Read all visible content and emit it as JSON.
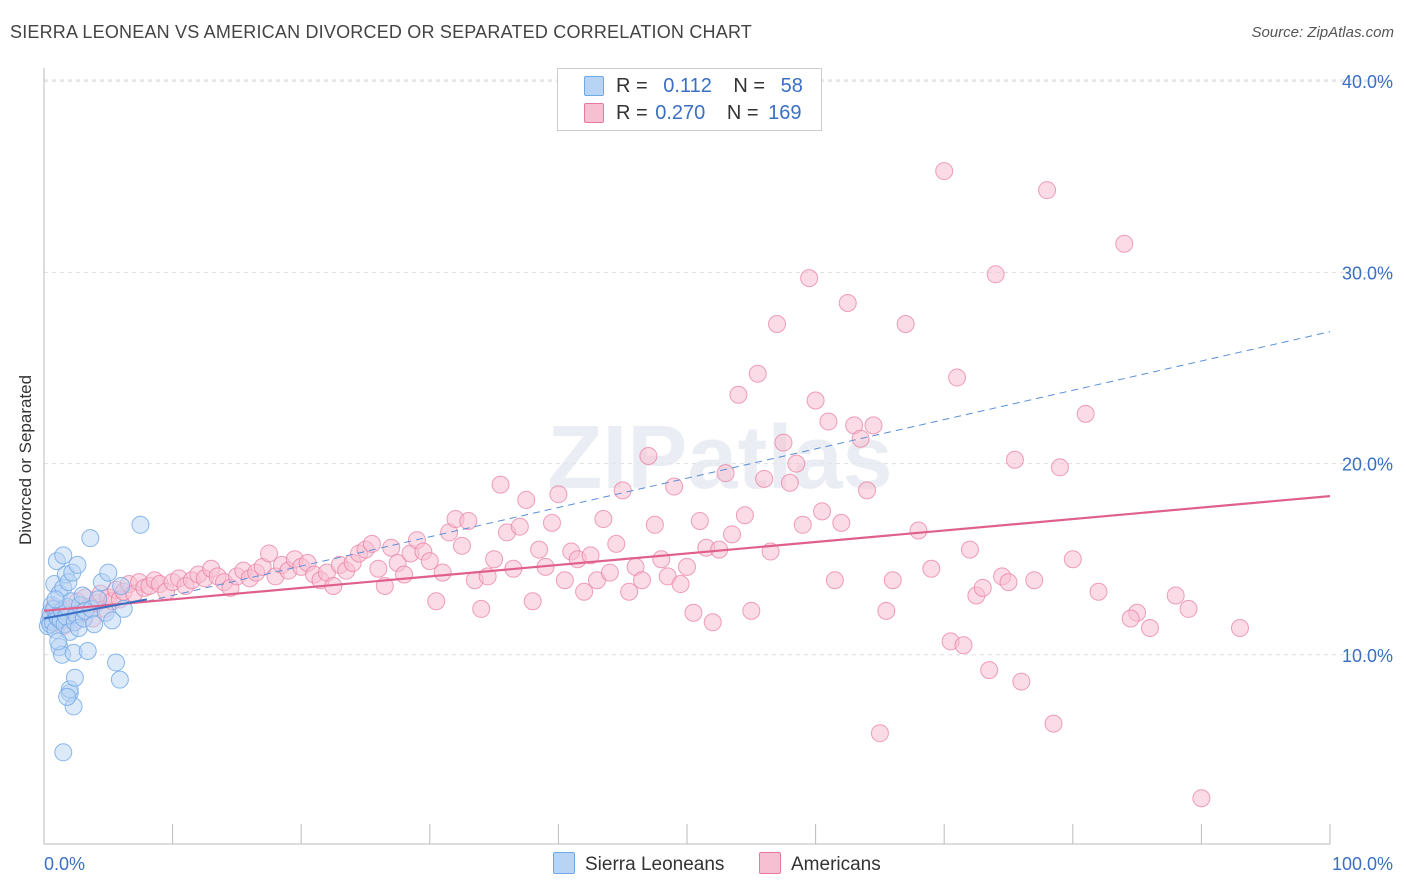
{
  "title": "SIERRA LEONEAN VS AMERICAN DIVORCED OR SEPARATED CORRELATION CHART",
  "source": "Source: ZipAtlas.com",
  "watermark": "ZIPatlas",
  "legend": {
    "row1": {
      "r_label": "R =",
      "r_value": "0.112",
      "n_label": "N =",
      "n_value": "58"
    },
    "row2": {
      "r_label": "R =",
      "r_value": "0.270",
      "n_label": "N =",
      "n_value": "169"
    }
  },
  "bottom_legend": {
    "series1": "Sierra Leoneans",
    "series2": "Americans"
  },
  "colors": {
    "blue": "#6fa8e8",
    "blue_fill": "#b8d4f4",
    "pink": "#e8799c",
    "pink_fill": "#f7c0d2",
    "axis_text": "#3a6fc4",
    "grid": "#dddddd"
  },
  "chart_data": {
    "type": "scatter",
    "title": "SIERRA LEONEAN VS AMERICAN DIVORCED OR SEPARATED CORRELATION CHART",
    "xlabel": "",
    "ylabel": "Divorced or Separated",
    "xlim": [
      0,
      100
    ],
    "ylim": [
      0,
      42
    ],
    "x_tick_labels": [
      "0.0%",
      "100.0%"
    ],
    "y_ticks": [
      10,
      20,
      30,
      40
    ],
    "y_tick_labels": [
      "10.0%",
      "20.0%",
      "30.0%",
      "40.0%"
    ],
    "grid": true,
    "legend_position": "top-center",
    "series": [
      {
        "name": "Sierra Leoneans",
        "R": 0.112,
        "N": 58,
        "trend": {
          "x": [
            0,
            8
          ],
          "y": [
            11.9,
            12.9
          ]
        },
        "points": [
          [
            0.3,
            11.5
          ],
          [
            0.4,
            11.8
          ],
          [
            0.5,
            12.2
          ],
          [
            0.5,
            11.6
          ],
          [
            0.6,
            12.6
          ],
          [
            0.7,
            11.7
          ],
          [
            0.8,
            12.4
          ],
          [
            0.8,
            13.7
          ],
          [
            0.9,
            11.3
          ],
          [
            1.0,
            12.0
          ],
          [
            1.0,
            14.9
          ],
          [
            1.1,
            11.9
          ],
          [
            1.2,
            13.2
          ],
          [
            1.2,
            10.4
          ],
          [
            1.3,
            11.8
          ],
          [
            1.4,
            12.3
          ],
          [
            1.4,
            10.0
          ],
          [
            1.5,
            13.5
          ],
          [
            1.5,
            15.2
          ],
          [
            1.6,
            11.6
          ],
          [
            1.7,
            14.2
          ],
          [
            1.7,
            12.0
          ],
          [
            1.8,
            12.5
          ],
          [
            1.9,
            13.8
          ],
          [
            2.0,
            11.2
          ],
          [
            2.0,
            8.0
          ],
          [
            2.1,
            12.8
          ],
          [
            2.2,
            14.3
          ],
          [
            2.3,
            10.1
          ],
          [
            2.3,
            7.3
          ],
          [
            2.4,
            11.7
          ],
          [
            2.5,
            12.1
          ],
          [
            2.6,
            14.7
          ],
          [
            2.7,
            11.4
          ],
          [
            2.8,
            12.6
          ],
          [
            3.0,
            13.1
          ],
          [
            3.1,
            11.9
          ],
          [
            3.2,
            12.3
          ],
          [
            3.4,
            10.2
          ],
          [
            3.6,
            16.1
          ],
          [
            3.7,
            12.4
          ],
          [
            3.9,
            11.6
          ],
          [
            4.2,
            12.9
          ],
          [
            4.5,
            13.8
          ],
          [
            4.8,
            12.2
          ],
          [
            5.0,
            14.3
          ],
          [
            5.3,
            11.8
          ],
          [
            6.0,
            13.6
          ],
          [
            6.2,
            12.4
          ],
          [
            0.9,
            12.9
          ],
          [
            1.1,
            10.7
          ],
          [
            2.0,
            8.2
          ],
          [
            2.4,
            8.8
          ],
          [
            1.5,
            4.9
          ],
          [
            5.6,
            9.6
          ],
          [
            5.9,
            8.7
          ],
          [
            7.5,
            16.8
          ],
          [
            1.8,
            7.8
          ]
        ]
      },
      {
        "name": "Americans",
        "R": 0.27,
        "N": 169,
        "trend": {
          "x": [
            0,
            100
          ],
          "y": [
            12.3,
            18.3
          ]
        },
        "dashed_extension": {
          "x": [
            8,
            100
          ],
          "y": [
            12.8,
            26.9
          ]
        },
        "points": [
          [
            0.5,
            12.0
          ],
          [
            0.8,
            12.5
          ],
          [
            1.0,
            11.8
          ],
          [
            1.2,
            12.3
          ],
          [
            1.5,
            11.5
          ],
          [
            1.8,
            12.1
          ],
          [
            2.0,
            12.4
          ],
          [
            2.3,
            11.7
          ],
          [
            2.6,
            12.8
          ],
          [
            2.9,
            12.2
          ],
          [
            3.2,
            13.0
          ],
          [
            3.5,
            12.5
          ],
          [
            3.8,
            11.9
          ],
          [
            4.1,
            12.7
          ],
          [
            4.4,
            13.2
          ],
          [
            4.7,
            12.4
          ],
          [
            5.0,
            13.0
          ],
          [
            5.3,
            12.8
          ],
          [
            5.6,
            13.4
          ],
          [
            5.9,
            12.9
          ],
          [
            6.2,
            13.3
          ],
          [
            6.6,
            13.7
          ],
          [
            7.0,
            13.2
          ],
          [
            7.4,
            13.8
          ],
          [
            7.8,
            13.5
          ],
          [
            8.2,
            13.6
          ],
          [
            8.6,
            13.9
          ],
          [
            9.0,
            13.7
          ],
          [
            9.5,
            13.3
          ],
          [
            10.0,
            13.8
          ],
          [
            10.5,
            14.0
          ],
          [
            11.0,
            13.6
          ],
          [
            11.5,
            13.9
          ],
          [
            12.0,
            14.2
          ],
          [
            12.5,
            14.0
          ],
          [
            13.0,
            14.5
          ],
          [
            13.5,
            14.1
          ],
          [
            14.0,
            13.8
          ],
          [
            14.5,
            13.5
          ],
          [
            15.0,
            14.1
          ],
          [
            15.5,
            14.4
          ],
          [
            16.0,
            14.0
          ],
          [
            16.5,
            14.3
          ],
          [
            17.0,
            14.6
          ],
          [
            17.5,
            15.3
          ],
          [
            18.0,
            14.1
          ],
          [
            18.5,
            14.7
          ],
          [
            19.0,
            14.4
          ],
          [
            19.5,
            15.0
          ],
          [
            20.0,
            14.6
          ],
          [
            20.5,
            14.8
          ],
          [
            21.0,
            14.2
          ],
          [
            21.5,
            13.9
          ],
          [
            22.0,
            14.3
          ],
          [
            22.5,
            13.6
          ],
          [
            23.0,
            14.7
          ],
          [
            23.5,
            14.4
          ],
          [
            24.0,
            14.8
          ],
          [
            24.5,
            15.3
          ],
          [
            25.0,
            15.5
          ],
          [
            25.5,
            15.8
          ],
          [
            26.0,
            14.5
          ],
          [
            26.5,
            13.6
          ],
          [
            27.0,
            15.6
          ],
          [
            27.5,
            14.8
          ],
          [
            28.0,
            14.2
          ],
          [
            28.5,
            15.3
          ],
          [
            29.0,
            16.0
          ],
          [
            29.5,
            15.4
          ],
          [
            30.0,
            14.9
          ],
          [
            30.5,
            12.8
          ],
          [
            31.0,
            14.3
          ],
          [
            31.5,
            16.4
          ],
          [
            32.0,
            17.1
          ],
          [
            32.5,
            15.7
          ],
          [
            33.0,
            17.0
          ],
          [
            33.5,
            13.9
          ],
          [
            34.0,
            12.4
          ],
          [
            34.5,
            14.1
          ],
          [
            35.0,
            15.0
          ],
          [
            35.5,
            18.9
          ],
          [
            36.0,
            16.4
          ],
          [
            36.5,
            14.5
          ],
          [
            37.0,
            16.7
          ],
          [
            37.5,
            18.1
          ],
          [
            38.0,
            12.8
          ],
          [
            38.5,
            15.5
          ],
          [
            39.0,
            14.6
          ],
          [
            39.5,
            16.9
          ],
          [
            40.0,
            18.4
          ],
          [
            40.5,
            13.9
          ],
          [
            41.0,
            15.4
          ],
          [
            41.5,
            15.0
          ],
          [
            42.0,
            13.3
          ],
          [
            42.5,
            15.2
          ],
          [
            43.0,
            13.9
          ],
          [
            43.5,
            17.1
          ],
          [
            44.0,
            14.3
          ],
          [
            44.5,
            15.8
          ],
          [
            45.0,
            18.6
          ],
          [
            45.5,
            13.3
          ],
          [
            46.0,
            14.6
          ],
          [
            46.5,
            13.9
          ],
          [
            47.0,
            20.4
          ],
          [
            47.5,
            16.8
          ],
          [
            48.0,
            15.0
          ],
          [
            48.5,
            14.1
          ],
          [
            49.0,
            18.8
          ],
          [
            49.5,
            13.7
          ],
          [
            50.0,
            14.6
          ],
          [
            50.5,
            12.2
          ],
          [
            51.0,
            17.0
          ],
          [
            51.5,
            15.6
          ],
          [
            52.0,
            11.7
          ],
          [
            52.5,
            15.5
          ],
          [
            53.0,
            19.5
          ],
          [
            53.5,
            16.3
          ],
          [
            54.0,
            23.6
          ],
          [
            54.5,
            17.3
          ],
          [
            55.0,
            12.3
          ],
          [
            55.5,
            24.7
          ],
          [
            56.0,
            19.2
          ],
          [
            56.5,
            15.4
          ],
          [
            57.0,
            27.3
          ],
          [
            57.5,
            21.1
          ],
          [
            58.0,
            19.0
          ],
          [
            58.5,
            20.0
          ],
          [
            59.0,
            16.8
          ],
          [
            59.5,
            29.7
          ],
          [
            60.0,
            23.3
          ],
          [
            60.5,
            17.5
          ],
          [
            61.0,
            22.2
          ],
          [
            61.5,
            13.9
          ],
          [
            62.0,
            16.9
          ],
          [
            62.5,
            28.4
          ],
          [
            63.0,
            22.0
          ],
          [
            63.5,
            21.3
          ],
          [
            64.0,
            18.6
          ],
          [
            64.5,
            22.0
          ],
          [
            65.0,
            5.9
          ],
          [
            65.5,
            12.3
          ],
          [
            66.0,
            13.9
          ],
          [
            67.0,
            27.3
          ],
          [
            68.0,
            16.5
          ],
          [
            69.0,
            14.5
          ],
          [
            70.0,
            35.3
          ],
          [
            70.5,
            10.7
          ],
          [
            71.0,
            24.5
          ],
          [
            71.5,
            10.5
          ],
          [
            72.0,
            15.5
          ],
          [
            72.5,
            13.1
          ],
          [
            73.0,
            13.5
          ],
          [
            73.5,
            9.2
          ],
          [
            74.0,
            29.9
          ],
          [
            74.5,
            14.1
          ],
          [
            75.0,
            13.8
          ],
          [
            75.5,
            20.2
          ],
          [
            76.0,
            8.6
          ],
          [
            77.0,
            13.9
          ],
          [
            78.0,
            34.3
          ],
          [
            78.5,
            6.4
          ],
          [
            79.0,
            19.8
          ],
          [
            80.0,
            15.0
          ],
          [
            81.0,
            22.6
          ],
          [
            82.0,
            13.3
          ],
          [
            84.0,
            31.5
          ],
          [
            85.0,
            12.2
          ],
          [
            86.0,
            11.4
          ],
          [
            88.0,
            13.1
          ],
          [
            89.0,
            12.4
          ],
          [
            90.0,
            2.5
          ],
          [
            93.0,
            11.4
          ],
          [
            84.5,
            11.9
          ]
        ]
      }
    ]
  }
}
